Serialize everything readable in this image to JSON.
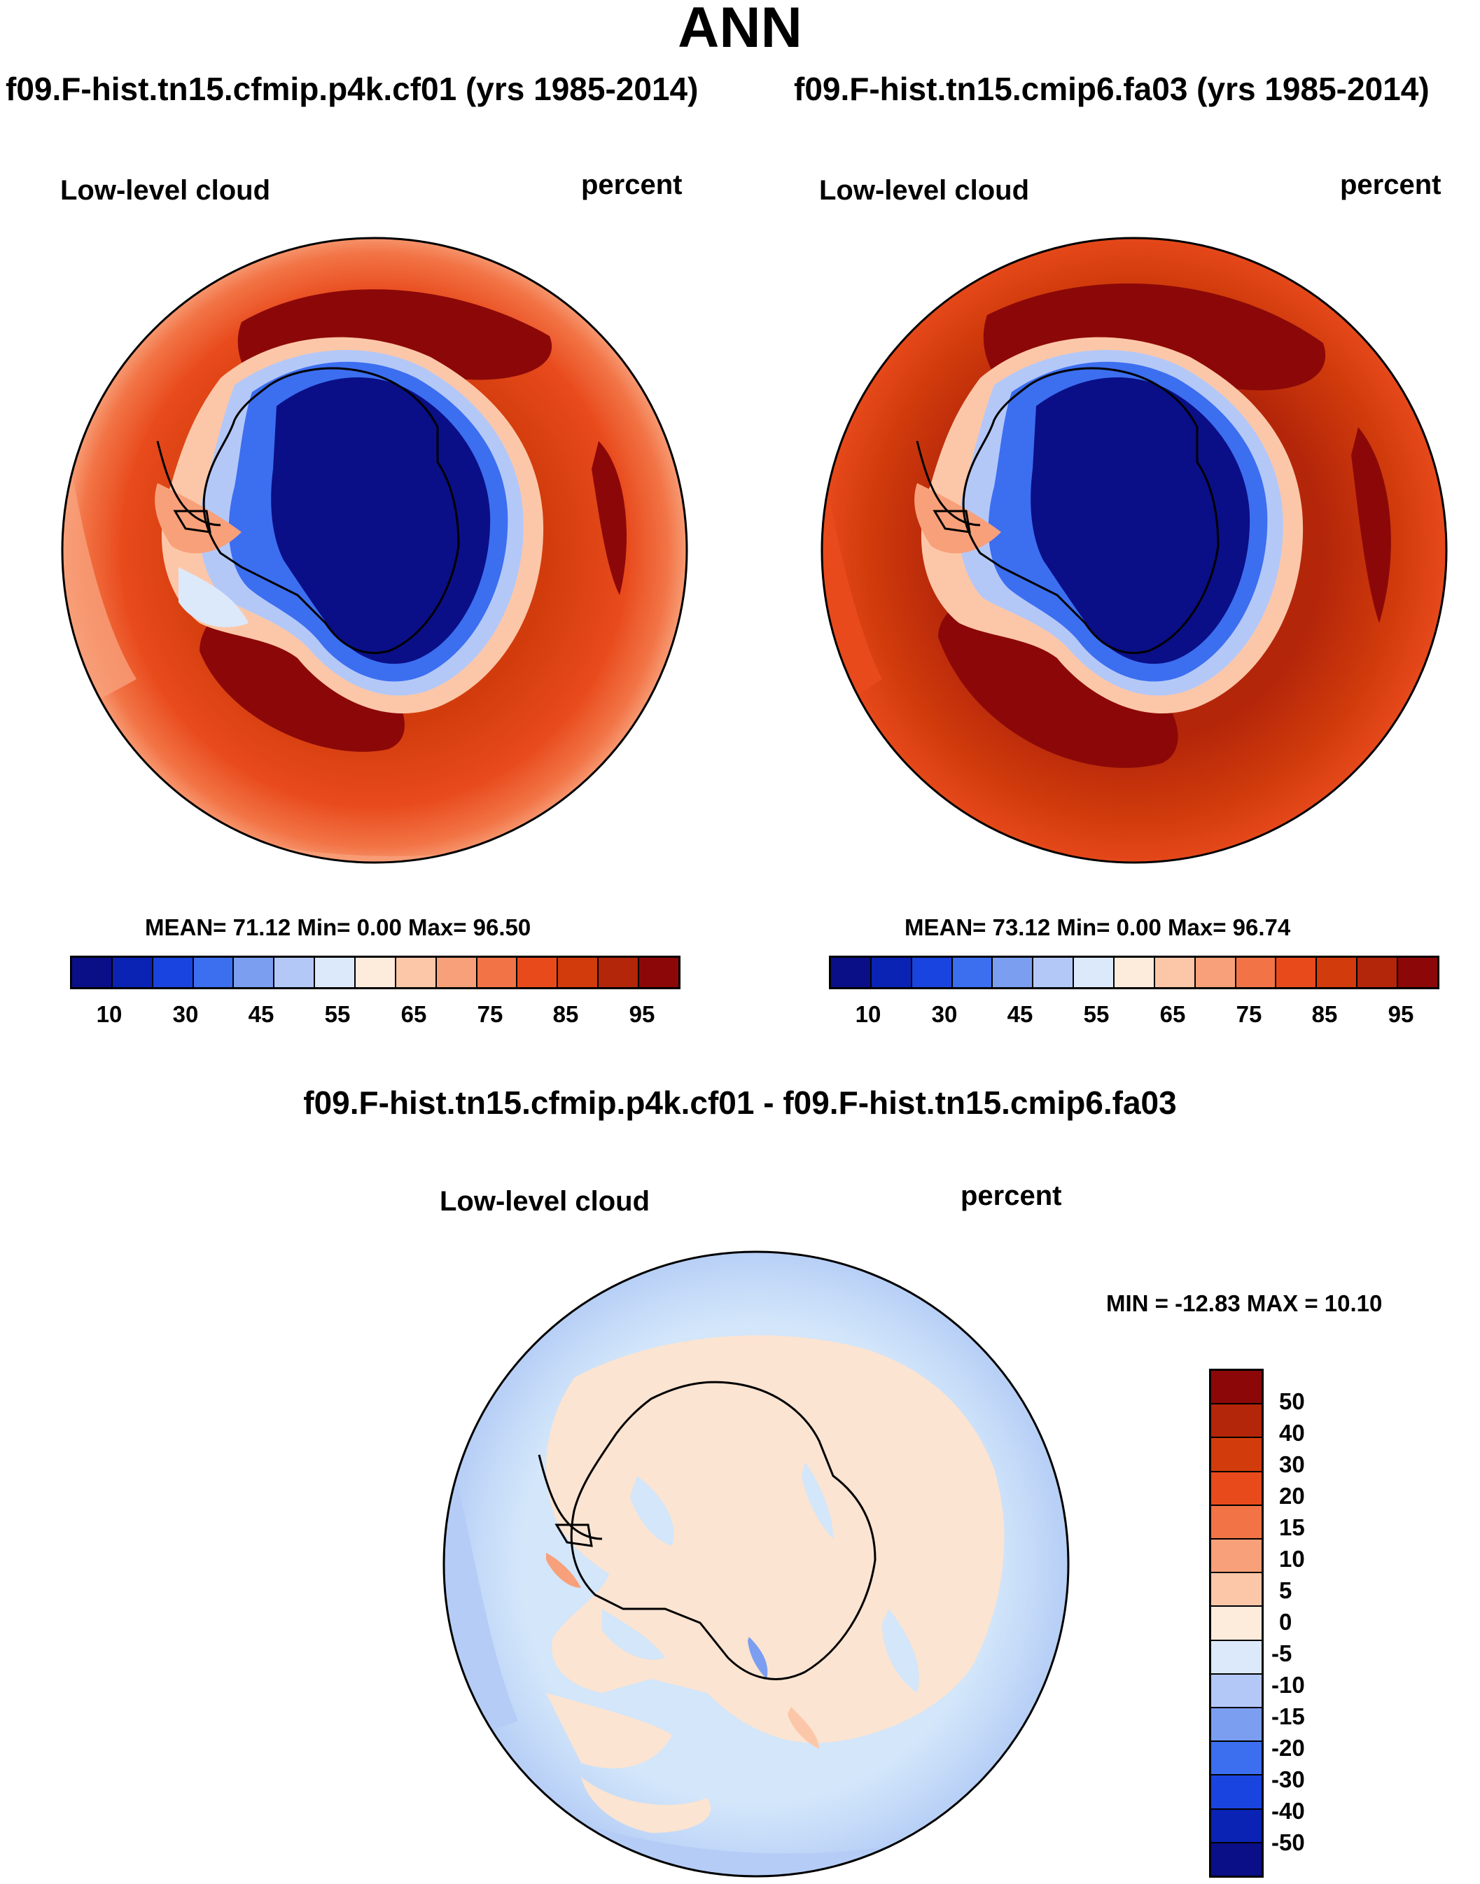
{
  "title": "ANN",
  "panels": [
    {
      "case": "f09.F-hist.tn15.cfmip.p4k.cf01 (yrs 1985-2014)",
      "variable": "Low-level cloud",
      "units": "percent",
      "stats": "MEAN=  71.12  Min=   0.00  Max=  96.50"
    },
    {
      "case": "f09.F-hist.tn15.cmip6.fa03 (yrs 1985-2014)",
      "variable": "Low-level cloud",
      "units": "percent",
      "stats": "MEAN=  73.12  Min=   0.00  Max=  96.74"
    }
  ],
  "colorbar": {
    "ticks": [
      "10",
      "30",
      "45",
      "55",
      "65",
      "75",
      "85",
      "95"
    ],
    "colors": [
      "#0a0f87",
      "#0a23b4",
      "#1a44e0",
      "#3c6ef0",
      "#7b9ef0",
      "#b4c8f8",
      "#dce9fa",
      "#fdebdc",
      "#fcc7a8",
      "#f8a07a",
      "#f27446",
      "#e84a1c",
      "#d23c0c",
      "#b4260a",
      "#8c0808"
    ]
  },
  "diff": {
    "title": "f09.F-hist.tn15.cfmip.p4k.cf01 - f09.F-hist.tn15.cmip6.fa03",
    "variable": "Low-level cloud",
    "units": "percent",
    "stats": "MIN = -12.83 MAX =  10.10",
    "colorbar_ticks": [
      "50",
      "40",
      "30",
      "20",
      "15",
      "10",
      "5",
      "0",
      "-5",
      "-10",
      "-15",
      "-20",
      "-30",
      "-40",
      "-50"
    ],
    "colors": [
      "#8c0808",
      "#b4260a",
      "#d23c0c",
      "#e84a1c",
      "#f27446",
      "#f8a07a",
      "#fcc7a8",
      "#fdebdc",
      "#dce9fa",
      "#b4c8f8",
      "#7b9ef0",
      "#3c6ef0",
      "#1a44e0",
      "#0a23b4",
      "#0a0f87"
    ],
    "land_color": "#fbe4d2",
    "ocean_color": "#d3e6fa",
    "outer_ring_color": "#b5cdf6"
  }
}
